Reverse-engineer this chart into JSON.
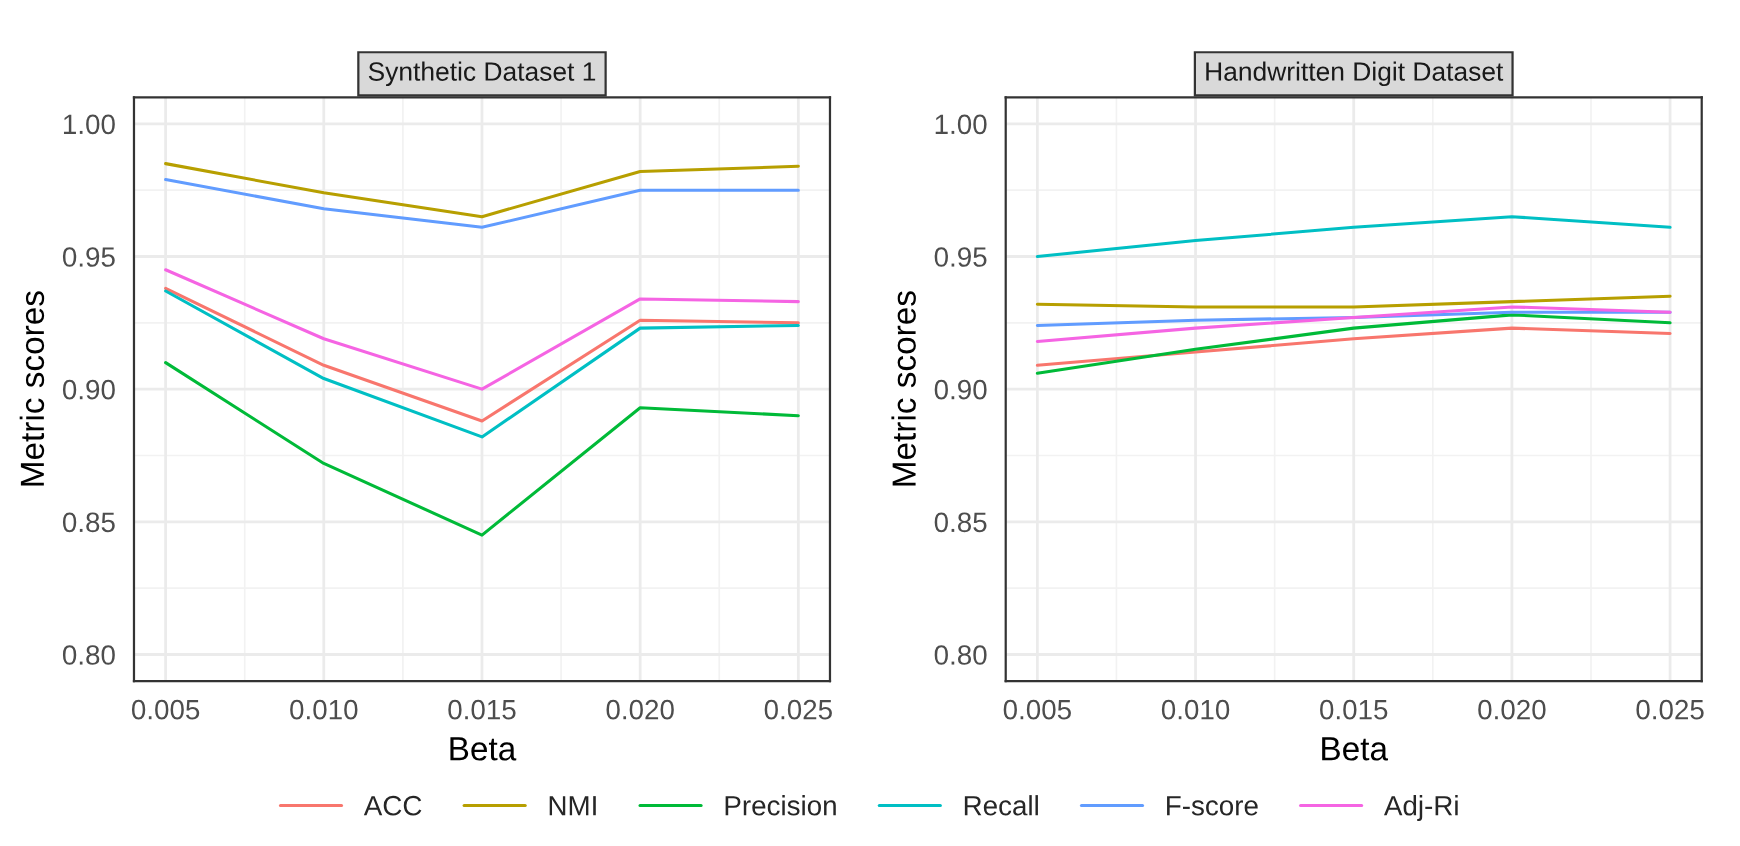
{
  "chart_data": [
    {
      "type": "line",
      "title": "Synthetic Dataset 1",
      "xlabel": "Beta",
      "ylabel": "Metric scores",
      "x": [
        0.005,
        0.01,
        0.015,
        0.02,
        0.025
      ],
      "xlim": [
        0.004,
        0.026
      ],
      "xticks": [
        {
          "value": 0.005,
          "label": "0.005"
        },
        {
          "value": 0.01,
          "label": "0.010"
        },
        {
          "value": 0.015,
          "label": "0.015"
        },
        {
          "value": 0.02,
          "label": "0.020"
        },
        {
          "value": 0.025,
          "label": "0.025"
        }
      ],
      "ylim": [
        0.79,
        1.01
      ],
      "yticks": [
        {
          "value": 0.8,
          "label": "0.80"
        },
        {
          "value": 0.85,
          "label": "0.85"
        },
        {
          "value": 0.9,
          "label": "0.90"
        },
        {
          "value": 0.95,
          "label": "0.95"
        },
        {
          "value": 1.0,
          "label": "1.00"
        }
      ],
      "grid": true,
      "legend": "bottom",
      "series": [
        {
          "name": "ACC",
          "color": "#f8766d",
          "values": [
            0.938,
            0.909,
            0.888,
            0.926,
            0.925
          ]
        },
        {
          "name": "NMI",
          "color": "#b79f00",
          "values": [
            0.985,
            0.974,
            0.965,
            0.982,
            0.984
          ]
        },
        {
          "name": "Precision",
          "color": "#00ba38",
          "values": [
            0.91,
            0.872,
            0.845,
            0.893,
            0.89
          ]
        },
        {
          "name": "Recall",
          "color": "#00bfc4",
          "values": [
            0.937,
            0.904,
            0.882,
            0.923,
            0.924
          ]
        },
        {
          "name": "F-score",
          "color": "#619cff",
          "values": [
            0.979,
            0.968,
            0.961,
            0.975,
            0.975
          ]
        },
        {
          "name": "Adj-Ri",
          "color": "#f564e3",
          "values": [
            0.945,
            0.919,
            0.9,
            0.934,
            0.933
          ]
        }
      ]
    },
    {
      "type": "line",
      "title": "Handwritten Digit Dataset",
      "xlabel": "Beta",
      "ylabel": "Metric scores",
      "x": [
        0.005,
        0.01,
        0.015,
        0.02,
        0.025
      ],
      "xlim": [
        0.004,
        0.026
      ],
      "xticks": [
        {
          "value": 0.005,
          "label": "0.005"
        },
        {
          "value": 0.01,
          "label": "0.010"
        },
        {
          "value": 0.015,
          "label": "0.015"
        },
        {
          "value": 0.02,
          "label": "0.020"
        },
        {
          "value": 0.025,
          "label": "0.025"
        }
      ],
      "ylim": [
        0.79,
        1.01
      ],
      "yticks": [
        {
          "value": 0.8,
          "label": "0.80"
        },
        {
          "value": 0.85,
          "label": "0.85"
        },
        {
          "value": 0.9,
          "label": "0.90"
        },
        {
          "value": 0.95,
          "label": "0.95"
        },
        {
          "value": 1.0,
          "label": "1.00"
        }
      ],
      "grid": true,
      "legend": "bottom",
      "series": [
        {
          "name": "ACC",
          "color": "#f8766d",
          "values": [
            0.909,
            0.914,
            0.919,
            0.923,
            0.921
          ]
        },
        {
          "name": "NMI",
          "color": "#b79f00",
          "values": [
            0.932,
            0.931,
            0.931,
            0.933,
            0.935
          ]
        },
        {
          "name": "Precision",
          "color": "#00ba38",
          "values": [
            0.906,
            0.915,
            0.923,
            0.928,
            0.925
          ]
        },
        {
          "name": "Recall",
          "color": "#00bfc4",
          "values": [
            0.95,
            0.956,
            0.961,
            0.965,
            0.961
          ]
        },
        {
          "name": "F-score",
          "color": "#619cff",
          "values": [
            0.924,
            0.926,
            0.927,
            0.929,
            0.929
          ]
        },
        {
          "name": "Adj-Ri",
          "color": "#f564e3",
          "values": [
            0.918,
            0.923,
            0.927,
            0.931,
            0.929
          ]
        }
      ]
    }
  ]
}
